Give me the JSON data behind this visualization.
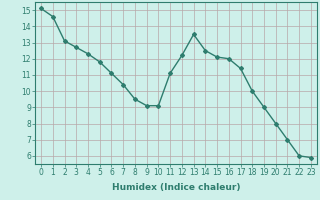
{
  "x": [
    0,
    1,
    2,
    3,
    4,
    5,
    6,
    7,
    8,
    9,
    10,
    11,
    12,
    13,
    14,
    15,
    16,
    17,
    18,
    19,
    20,
    21,
    22,
    23
  ],
  "y": [
    15.1,
    14.6,
    13.1,
    12.7,
    12.3,
    11.8,
    11.1,
    10.4,
    9.5,
    9.1,
    9.1,
    11.1,
    12.2,
    13.5,
    12.5,
    12.1,
    12.0,
    11.4,
    10.0,
    9.0,
    8.0,
    7.0,
    6.0,
    5.9
  ],
  "line_color": "#2e7d6e",
  "marker": "D",
  "marker_size": 2.0,
  "bg_color": "#cef0ea",
  "grid_color": "#b8a8a8",
  "xlabel": "Humidex (Indice chaleur)",
  "xlim": [
    -0.5,
    23.5
  ],
  "ylim": [
    5.5,
    15.5
  ],
  "yticks": [
    6,
    7,
    8,
    9,
    10,
    11,
    12,
    13,
    14,
    15
  ],
  "xticks": [
    0,
    1,
    2,
    3,
    4,
    5,
    6,
    7,
    8,
    9,
    10,
    11,
    12,
    13,
    14,
    15,
    16,
    17,
    18,
    19,
    20,
    21,
    22,
    23
  ],
  "tick_fontsize": 5.5,
  "xlabel_fontsize": 6.5,
  "line_width": 1.0
}
